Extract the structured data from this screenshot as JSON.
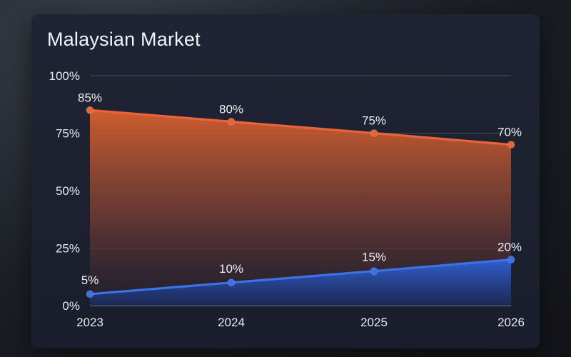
{
  "chart_data": {
    "type": "area",
    "title": "Malaysian Market",
    "xlabel": "",
    "ylabel": "",
    "categories": [
      "2023",
      "2024",
      "2025",
      "2026"
    ],
    "series": [
      {
        "values": [
          85,
          80,
          75,
          70
        ],
        "color": "#e8643a",
        "labels": [
          "85%",
          "80%",
          "75%",
          "70%"
        ]
      },
      {
        "values": [
          5,
          10,
          15,
          20
        ],
        "color": "#3b72e6",
        "labels": [
          "5%",
          "10%",
          "15%",
          "20%"
        ]
      }
    ],
    "ylim": [
      0,
      100
    ],
    "yticks": [
      0,
      25,
      50,
      75,
      100
    ],
    "ytick_labels": [
      "0%",
      "25%",
      "50%",
      "75%",
      "100%"
    ],
    "grid": true
  }
}
